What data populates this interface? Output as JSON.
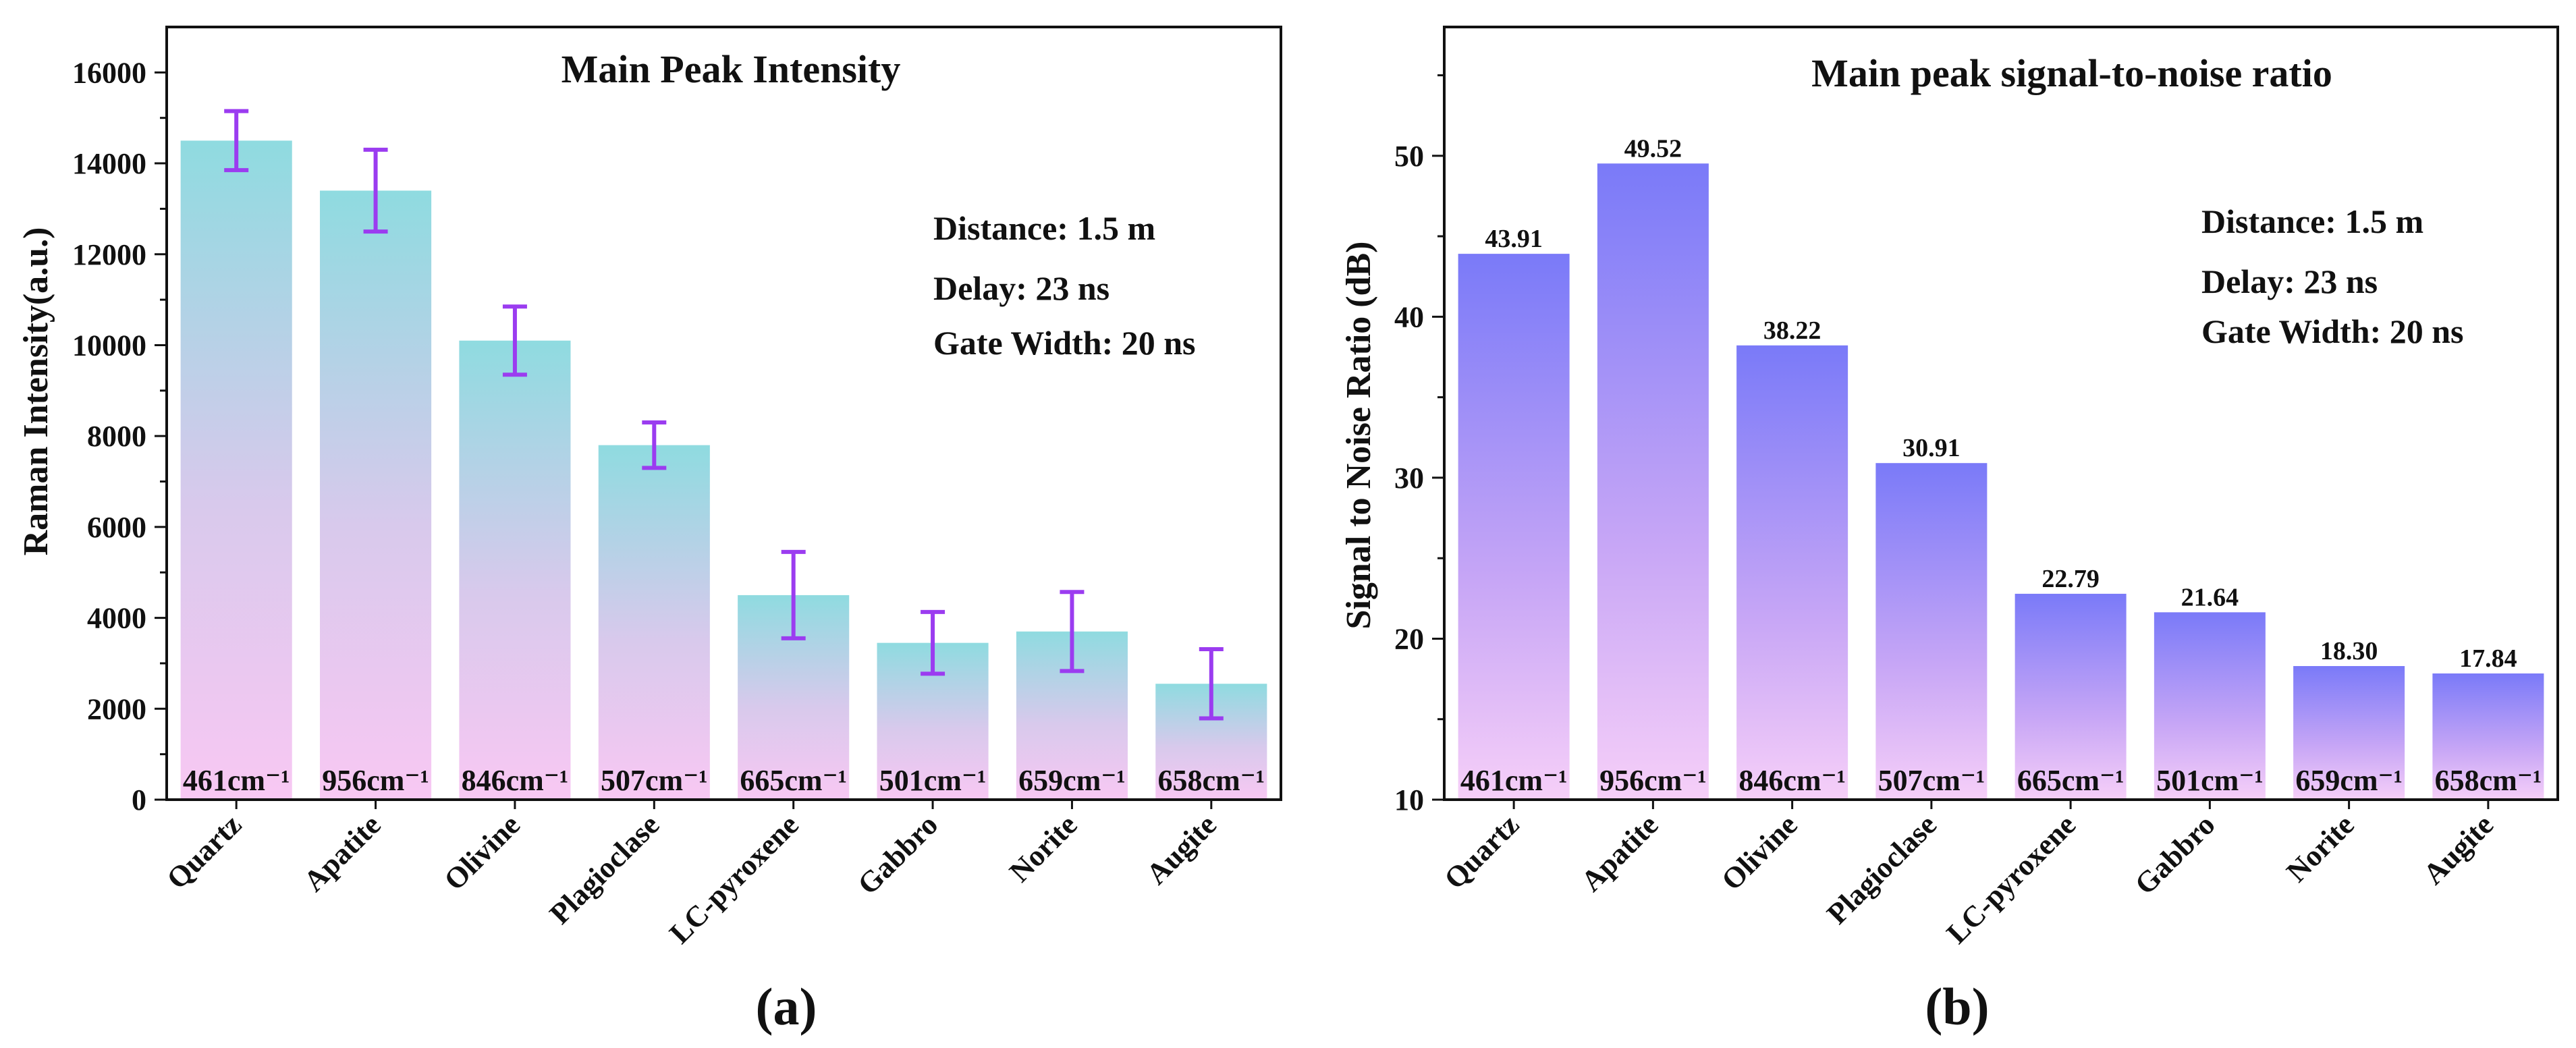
{
  "figure": {
    "panel_a": "(a)",
    "panel_b": "(b)"
  },
  "colors": {
    "intensity_top": "#8fdbe0",
    "intensity_bottom": "#f8c8f3",
    "snr_top": "#7a7af8",
    "snr_bottom": "#f6cff8",
    "error_bar": "#9b3cf0"
  },
  "chart_data": [
    {
      "type": "bar",
      "title": "Main Peak Intensity",
      "xlabel": "",
      "ylabel": "Raman Intensity(a.u.)",
      "ylim": [
        0,
        17000
      ],
      "yticks": [
        0,
        2000,
        4000,
        6000,
        8000,
        10000,
        12000,
        14000,
        16000
      ],
      "categories": [
        "Quartz",
        "Apatite",
        "Olivine",
        "Plagioclase",
        "LC-pyroxene",
        "Gabbro",
        "Norite",
        "Augite"
      ],
      "values": [
        14500,
        13400,
        10100,
        7800,
        4500,
        3450,
        3700,
        2550
      ],
      "errors": [
        650,
        900,
        750,
        500,
        950,
        680,
        870,
        760
      ],
      "wavenumbers": [
        "461cm⁻¹",
        "956cm⁻¹",
        "846cm⁻¹",
        "507cm⁻¹",
        "665cm⁻¹",
        "501cm⁻¹",
        "659cm⁻¹",
        "658cm⁻¹"
      ],
      "annotations": [
        "Distance: 1.5 m",
        "Delay: 23 ns",
        "Gate Width: 20 ns"
      ]
    },
    {
      "type": "bar",
      "title": "Main peak signal-to-noise ratio",
      "xlabel": "",
      "ylabel": "Signal to Noise Ratio (dB)",
      "ylim": [
        10,
        58
      ],
      "yticks": [
        10,
        20,
        30,
        40,
        50
      ],
      "categories": [
        "Quartz",
        "Apatite",
        "Olivine",
        "Plagioclase",
        "LC-pyroxene",
        "Gabbro",
        "Norite",
        "Augite"
      ],
      "values": [
        43.91,
        49.52,
        38.22,
        30.91,
        22.79,
        21.64,
        18.3,
        17.84
      ],
      "value_labels": [
        "43.91",
        "49.52",
        "38.22",
        "30.91",
        "22.79",
        "21.64",
        "18.30",
        "17.84"
      ],
      "wavenumbers": [
        "461cm⁻¹",
        "956cm⁻¹",
        "846cm⁻¹",
        "507cm⁻¹",
        "665cm⁻¹",
        "501cm⁻¹",
        "659cm⁻¹",
        "658cm⁻¹"
      ],
      "annotations": [
        "Distance: 1.5 m",
        "Delay: 23 ns",
        "Gate Width: 20 ns"
      ]
    }
  ]
}
